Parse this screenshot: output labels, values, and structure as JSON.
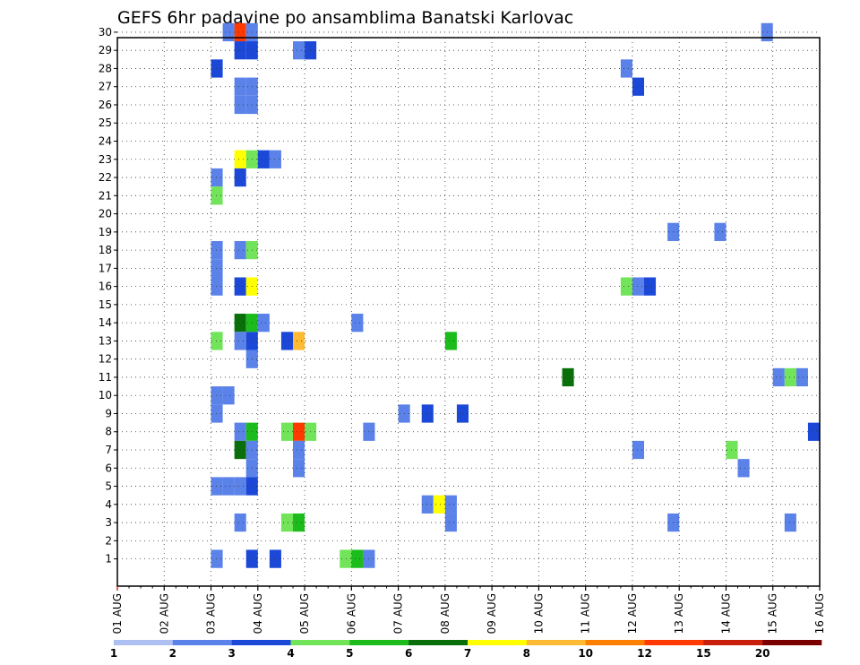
{
  "chart_data": {
    "type": "heatmap",
    "title": "GEFS 6hr padavine po ansamblima Banatski Karlovac",
    "xlabel": "",
    "ylabel": "",
    "x_tick_labels": [
      "01 AUG",
      "02 AUG",
      "03 AUG",
      "04 AUG",
      "05 AUG",
      "06 AUG",
      "07 AUG",
      "08 AUG",
      "09 AUG",
      "10 AUG",
      "11 AUG",
      "12 AUG",
      "13 AUG",
      "14 AUG",
      "15 AUG",
      "16 AUG"
    ],
    "y_tick_labels": [
      "1",
      "2",
      "3",
      "4",
      "5",
      "6",
      "7",
      "8",
      "9",
      "10",
      "11",
      "12",
      "13",
      "14",
      "15",
      "16",
      "17",
      "18",
      "19",
      "20",
      "21",
      "22",
      "23",
      "24",
      "25",
      "26",
      "27",
      "28",
      "29",
      "30"
    ],
    "x_unit": "6-hour step from 01 AUG 00Z (4 steps per day)",
    "xlim": [
      0,
      60
    ],
    "ylim": [
      0,
      30
    ],
    "grid": true,
    "legend_placement": "bottom",
    "color_levels": [
      1,
      2,
      3,
      4,
      5,
      6,
      7,
      8,
      10,
      12,
      15,
      20
    ],
    "colors": [
      "#aebff2",
      "#5a82e8",
      "#1c48d8",
      "#72e45a",
      "#1dbc1d",
      "#0a6e0a",
      "#ffff00",
      "#ffba33",
      "#ff8000",
      "#ff3a00",
      "#c81e0a",
      "#7a0000"
    ],
    "values": [
      [
        9,
        30,
        1
      ],
      [
        10,
        30,
        9
      ],
      [
        11,
        30,
        1
      ],
      [
        55,
        30,
        1
      ],
      [
        10,
        29,
        2
      ],
      [
        11,
        29,
        2
      ],
      [
        15,
        29,
        1
      ],
      [
        16,
        29,
        2
      ],
      [
        8,
        28,
        2
      ],
      [
        43,
        28,
        1
      ],
      [
        10,
        27,
        1
      ],
      [
        11,
        27,
        1
      ],
      [
        44,
        27,
        2
      ],
      [
        10,
        26,
        1
      ],
      [
        11,
        26,
        1
      ],
      [
        10,
        23,
        6
      ],
      [
        11,
        23,
        3
      ],
      [
        12,
        23,
        2
      ],
      [
        13,
        23,
        1
      ],
      [
        8,
        22,
        1
      ],
      [
        10,
        22,
        2
      ],
      [
        8,
        21,
        3
      ],
      [
        47,
        19,
        1
      ],
      [
        51,
        19,
        1
      ],
      [
        8,
        18,
        1
      ],
      [
        10,
        18,
        1
      ],
      [
        11,
        18,
        3
      ],
      [
        8,
        17,
        1
      ],
      [
        8,
        16,
        1
      ],
      [
        10,
        16,
        2
      ],
      [
        11,
        16,
        6
      ],
      [
        43,
        16,
        3
      ],
      [
        44,
        16,
        1
      ],
      [
        45,
        16,
        2
      ],
      [
        10,
        14,
        5
      ],
      [
        11,
        14,
        4
      ],
      [
        12,
        14,
        1
      ],
      [
        20,
        14,
        1
      ],
      [
        8,
        13,
        3
      ],
      [
        10,
        13,
        1
      ],
      [
        11,
        13,
        2
      ],
      [
        14,
        13,
        2
      ],
      [
        15,
        13,
        7
      ],
      [
        28,
        13,
        4
      ],
      [
        11,
        12,
        1
      ],
      [
        38,
        11,
        5
      ],
      [
        56,
        11,
        1
      ],
      [
        57,
        11,
        3
      ],
      [
        58,
        11,
        1
      ],
      [
        8,
        10,
        1
      ],
      [
        9,
        10,
        1
      ],
      [
        8,
        9,
        1
      ],
      [
        24,
        9,
        1
      ],
      [
        26,
        9,
        2
      ],
      [
        29,
        9,
        2
      ],
      [
        10,
        8,
        1
      ],
      [
        11,
        8,
        4
      ],
      [
        14,
        8,
        3
      ],
      [
        15,
        8,
        9
      ],
      [
        16,
        8,
        3
      ],
      [
        21,
        8,
        1
      ],
      [
        59,
        8,
        2
      ],
      [
        10,
        7,
        5
      ],
      [
        11,
        7,
        1
      ],
      [
        15,
        7,
        1
      ],
      [
        44,
        7,
        1
      ],
      [
        52,
        7,
        3
      ],
      [
        11,
        6,
        1
      ],
      [
        15,
        6,
        1
      ],
      [
        53,
        6,
        1
      ],
      [
        8,
        5,
        1
      ],
      [
        9,
        5,
        1
      ],
      [
        10,
        5,
        1
      ],
      [
        11,
        5,
        2
      ],
      [
        26,
        4,
        1
      ],
      [
        27,
        4,
        6
      ],
      [
        28,
        4,
        1
      ],
      [
        10,
        3,
        1
      ],
      [
        14,
        3,
        3
      ],
      [
        15,
        3,
        4
      ],
      [
        28,
        3,
        1
      ],
      [
        47,
        3,
        1
      ],
      [
        57,
        3,
        1
      ],
      [
        8,
        1,
        1
      ],
      [
        11,
        1,
        2
      ],
      [
        13,
        1,
        2
      ],
      [
        19,
        1,
        3
      ],
      [
        20,
        1,
        4
      ],
      [
        21,
        1,
        1
      ]
    ]
  }
}
